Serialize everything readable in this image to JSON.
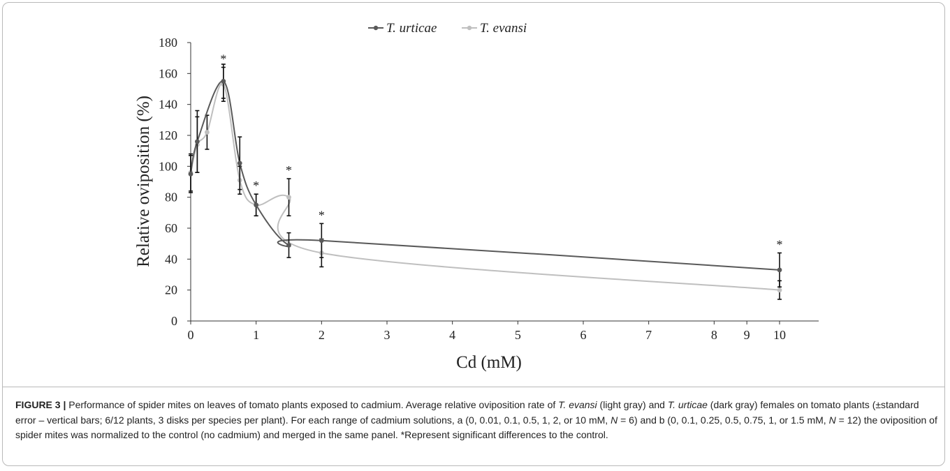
{
  "chart_data": {
    "type": "line",
    "title": "",
    "xlabel": "Cd (mM)",
    "ylabel": "Relative oviposition (%)",
    "xlim": [
      0,
      10
    ],
    "ylim": [
      0,
      180
    ],
    "x_ticks": [
      "0",
      "1",
      "2",
      "3",
      "4",
      "5",
      "6",
      "7",
      "8",
      "9",
      "10"
    ],
    "y_ticks": [
      "0",
      "20",
      "40",
      "60",
      "80",
      "100",
      "120",
      "140",
      "160",
      "180"
    ],
    "grid": false,
    "legend": "top-center",
    "significance_marker": "*",
    "series": [
      {
        "name": "T. urticae",
        "color": "#595959",
        "x": [
          0,
          0.1,
          0.5,
          0.75,
          1,
          1.5,
          2,
          10
        ],
        "y": [
          95,
          116,
          155,
          102,
          75,
          49,
          52,
          33
        ],
        "error": [
          12,
          20,
          11,
          17,
          7,
          8,
          11,
          11
        ],
        "significant": [
          false,
          false,
          false,
          false,
          false,
          false,
          true,
          true
        ]
      },
      {
        "name": "T. evansi",
        "color": "#bfbfbf",
        "x": [
          0,
          0.1,
          0.25,
          0.5,
          0.75,
          1,
          1.5,
          2,
          10
        ],
        "y": [
          96,
          114,
          122,
          153,
          91,
          75,
          80,
          44,
          20
        ],
        "error": [
          12,
          18,
          11,
          11,
          9,
          7,
          12,
          9,
          6
        ],
        "significant": [
          false,
          false,
          false,
          true,
          false,
          true,
          true,
          false,
          false
        ]
      }
    ]
  },
  "caption": {
    "label": "FIGURE 3 |",
    "segments": [
      {
        "t": " Performance of spider mites on leaves of tomato plants exposed to cadmium. Average relative oviposition rate of ",
        "i": false
      },
      {
        "t": "T. evansi",
        "i": true
      },
      {
        "t": " (light gray) and ",
        "i": false
      },
      {
        "t": "T. urticae",
        "i": true
      },
      {
        "t": " (dark gray) females on tomato plants (±standard error – vertical bars; 6/12 plants, 3 disks per species per plant). For each range of cadmium solutions, a (0, 0.01, 0.1, 0.5, 1, 2, or 10 mM, ",
        "i": false
      },
      {
        "t": "N",
        "i": true
      },
      {
        "t": " = 6) and b (0, 0.1, 0.25, 0.5, 0.75, 1, or 1.5 mM, ",
        "i": false
      },
      {
        "t": "N",
        "i": true
      },
      {
        "t": " = 12) the oviposition of spider mites was normalized to the control (no cadmium) and merged in the same panel. *Represent significant differences to the control.",
        "i": false
      }
    ]
  }
}
